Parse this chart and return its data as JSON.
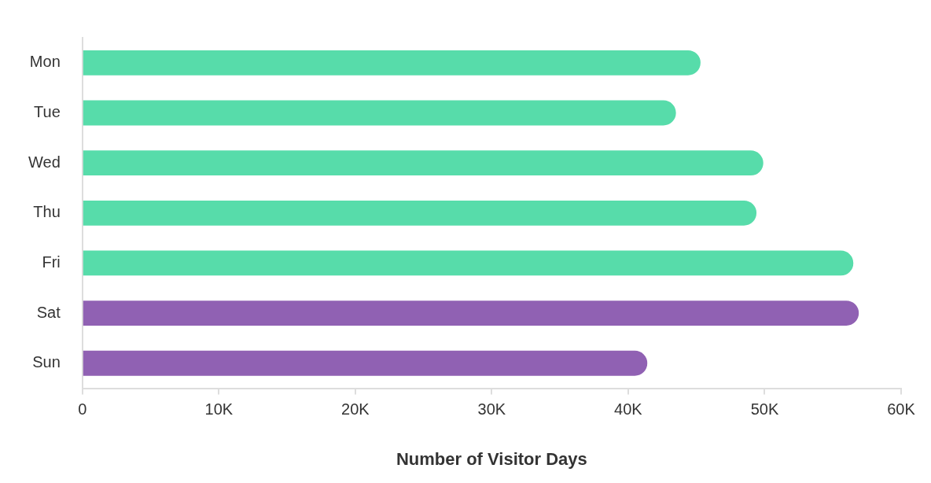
{
  "chart_data": {
    "type": "bar",
    "orientation": "horizontal",
    "xlabel": "Number of Visitor Days",
    "categories": [
      "Mon",
      "Tue",
      "Wed",
      "Thu",
      "Fri",
      "Sat",
      "Sun"
    ],
    "values": [
      45300,
      43500,
      49900,
      49400,
      56500,
      56900,
      41400
    ],
    "colors": [
      "#57dcaa",
      "#57dcaa",
      "#57dcaa",
      "#57dcaa",
      "#57dcaa",
      "#9061b3",
      "#9061b3"
    ],
    "xlim": [
      0,
      60000
    ],
    "xticks": [
      {
        "value": 0,
        "label": "0"
      },
      {
        "value": 10000,
        "label": "10K"
      },
      {
        "value": 20000,
        "label": "20K"
      },
      {
        "value": 30000,
        "label": "30K"
      },
      {
        "value": 40000,
        "label": "40K"
      },
      {
        "value": 50000,
        "label": "50K"
      },
      {
        "value": 60000,
        "label": "60K"
      }
    ],
    "grid": false,
    "legend": false
  }
}
